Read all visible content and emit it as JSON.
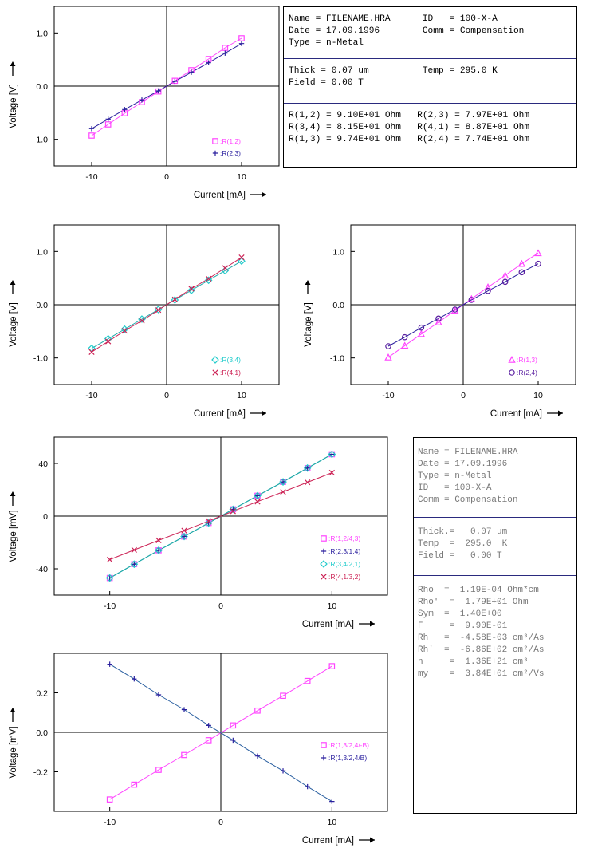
{
  "chart_data": [
    {
      "type": "scatter",
      "xlabel": "Current [mA]",
      "ylabel": "Voltage [V]",
      "xlim": [
        -15,
        15
      ],
      "ylim": [
        -1.5,
        1.5
      ],
      "xticks": [
        "-10",
        "0",
        "10"
      ],
      "yticks": [
        "1.0",
        "0.0",
        "-1.0"
      ],
      "grid": false,
      "legend": "bottom-right",
      "series": [
        {
          "name": ":R(1,2)",
          "marker": "square",
          "color": "#ff44ff",
          "line_color": "#ff44ff",
          "x": [
            -10,
            -7.8,
            -5.6,
            -3.3,
            -1.1,
            1.1,
            3.3,
            5.6,
            7.8,
            10
          ],
          "y": [
            -0.93,
            -0.72,
            -0.51,
            -0.3,
            -0.1,
            0.1,
            0.3,
            0.51,
            0.72,
            0.9
          ]
        },
        {
          "name": ":R(2,3)",
          "marker": "plus",
          "color": "#2a1f9e",
          "line_color": "#2a1f9e",
          "x": [
            -10,
            -7.8,
            -5.6,
            -3.3,
            -1.1,
            1.1,
            3.3,
            5.6,
            7.8,
            10
          ],
          "y": [
            -0.8,
            -0.62,
            -0.44,
            -0.26,
            -0.09,
            0.09,
            0.26,
            0.44,
            0.62,
            0.8
          ]
        }
      ]
    },
    {
      "type": "scatter",
      "xlabel": "Current [mA]",
      "ylabel": "Voltage [V]",
      "xlim": [
        -15,
        15
      ],
      "ylim": [
        -1.5,
        1.5
      ],
      "xticks": [
        "-10",
        "0",
        "10"
      ],
      "yticks": [
        "1.0",
        "0.0",
        "-1.0"
      ],
      "grid": false,
      "legend": "bottom-right",
      "series": [
        {
          "name": ":R(3,4)",
          "marker": "diamond",
          "color": "#22cccc",
          "line_color": "#22aaaa",
          "x": [
            -10,
            -7.8,
            -5.6,
            -3.3,
            -1.1,
            1.1,
            3.3,
            5.6,
            7.8,
            10
          ],
          "y": [
            -0.82,
            -0.64,
            -0.46,
            -0.27,
            -0.09,
            0.09,
            0.27,
            0.46,
            0.64,
            0.82
          ]
        },
        {
          "name": ":R(4,1)",
          "marker": "x",
          "color": "#cc2255",
          "line_color": "#cc2255",
          "x": [
            -10,
            -7.8,
            -5.6,
            -3.3,
            -1.1,
            1.1,
            3.3,
            5.6,
            7.8,
            10
          ],
          "y": [
            -0.89,
            -0.69,
            -0.49,
            -0.3,
            -0.1,
            0.1,
            0.3,
            0.49,
            0.69,
            0.89
          ]
        }
      ]
    },
    {
      "type": "scatter",
      "xlabel": "Current [mA]",
      "ylabel": "Voltage [V]",
      "xlim": [
        -15,
        15
      ],
      "ylim": [
        -1.5,
        1.5
      ],
      "xticks": [
        "-10",
        "0",
        "10"
      ],
      "yticks": [
        "1.0",
        "0.0",
        "-1.0"
      ],
      "grid": false,
      "legend": "bottom-right",
      "series": [
        {
          "name": ":R(1,3)",
          "marker": "triangle",
          "color": "#ff44ff",
          "line_color": "#ff44ff",
          "x": [
            -10,
            -7.8,
            -5.6,
            -3.3,
            -1.1,
            1.1,
            3.3,
            5.6,
            7.8,
            10
          ],
          "y": [
            -0.99,
            -0.77,
            -0.55,
            -0.33,
            -0.11,
            0.11,
            0.33,
            0.55,
            0.77,
            0.97
          ]
        },
        {
          "name": ":R(2,4)",
          "marker": "circle",
          "color": "#5a1fa0",
          "line_color": "#2a1f9e",
          "x": [
            -10,
            -7.8,
            -5.6,
            -3.3,
            -1.1,
            1.1,
            3.3,
            5.6,
            7.8,
            10
          ],
          "y": [
            -0.78,
            -0.61,
            -0.43,
            -0.26,
            -0.09,
            0.09,
            0.26,
            0.43,
            0.61,
            0.77
          ]
        }
      ]
    },
    {
      "type": "scatter",
      "xlabel": "Current [mA]",
      "ylabel": "Voltage [mV]",
      "xlim": [
        -15,
        15
      ],
      "ylim": [
        -60,
        60
      ],
      "xticks": [
        "-10",
        "0",
        "10"
      ],
      "yticks": [
        "40",
        "0",
        "-40"
      ],
      "grid": false,
      "legend": "bottom-right",
      "series": [
        {
          "name": ":R(1,2/4,3)",
          "marker": "square",
          "color": "#ff44ff",
          "line_color": "#22aaaa",
          "x": [
            -10,
            -7.8,
            -5.6,
            -3.3,
            -1.1,
            1.1,
            3.3,
            5.6,
            7.8,
            10
          ],
          "y": [
            -47,
            -36.5,
            -26,
            -15.5,
            -5.2,
            5.2,
            15.5,
            26,
            36.5,
            47
          ]
        },
        {
          "name": ":R(2,3/1,4)",
          "marker": "plus",
          "color": "#2a1f9e",
          "line_color": "#22aaaa",
          "x": [
            -10,
            -7.8,
            -5.6,
            -3.3,
            -1.1,
            1.1,
            3.3,
            5.6,
            7.8,
            10
          ],
          "y": [
            -47,
            -36.5,
            -26,
            -15.5,
            -5.2,
            5.2,
            15.5,
            26,
            36.5,
            47
          ]
        },
        {
          "name": ":R(3,4/2,1)",
          "marker": "diamond",
          "color": "#22cccc",
          "line_color": "#22aaaa",
          "x": [
            -10,
            -7.8,
            -5.6,
            -3.3,
            -1.1,
            1.1,
            3.3,
            5.6,
            7.8,
            10
          ],
          "y": [
            -47,
            -36.5,
            -26,
            -15.5,
            -5.2,
            5.2,
            15.5,
            26,
            36.5,
            47
          ]
        },
        {
          "name": ":R(4,1/3,2)",
          "marker": "x",
          "color": "#cc2255",
          "line_color": "#cc2255",
          "x": [
            -10,
            -7.8,
            -5.6,
            -3.3,
            -1.1,
            1.1,
            3.3,
            5.6,
            7.8,
            10
          ],
          "y": [
            -33,
            -25.7,
            -18.4,
            -11,
            -3.7,
            3.7,
            11,
            18.4,
            25.7,
            33
          ]
        }
      ]
    },
    {
      "type": "scatter",
      "xlabel": "Current [mA]",
      "ylabel": "Voltage [mV]",
      "xlim": [
        -15,
        15
      ],
      "ylim": [
        -0.4,
        0.4
      ],
      "xticks": [
        "-10",
        "0",
        "10"
      ],
      "yticks": [
        "0.2",
        "0.0",
        "-0.2"
      ],
      "grid": false,
      "legend": "bottom-right",
      "series": [
        {
          "name": ":R(1,3/2,4/-B)",
          "marker": "square",
          "color": "#ff44ff",
          "line_color": "#ff44ff",
          "x": [
            -10,
            -7.8,
            -5.6,
            -3.3,
            -1.1,
            1.1,
            3.3,
            5.6,
            7.8,
            10
          ],
          "y": [
            -0.34,
            -0.265,
            -0.19,
            -0.115,
            -0.04,
            0.035,
            0.11,
            0.185,
            0.26,
            0.335
          ]
        },
        {
          "name": ":R(1,3/2,4/B)",
          "marker": "plus",
          "color": "#2a1f9e",
          "line_color": "#2a5fa0",
          "x": [
            -10,
            -7.8,
            -5.6,
            -3.3,
            -1.1,
            1.1,
            3.3,
            5.6,
            7.8,
            10
          ],
          "y": [
            0.345,
            0.27,
            0.19,
            0.115,
            0.035,
            -0.04,
            -0.12,
            -0.195,
            -0.275,
            -0.35
          ]
        }
      ]
    }
  ],
  "info_top": {
    "sections": [
      [
        "Name = FILENAME.HRA      ID   = 100-X-A",
        "Date = 17.09.1996        Comm = Compensation",
        "Type = n-Metal"
      ],
      [
        "Thick = 0.07 um          Temp = 295.0 K",
        "Field = 0.00 T"
      ],
      [
        "R(1,2) = 9.10E+01 Ohm   R(2,3) = 7.97E+01 Ohm",
        "R(3,4) = 8.15E+01 Ohm   R(4,1) = 8.87E+01 Ohm",
        "R(1,3) = 9.74E+01 Ohm   R(2,4) = 7.74E+01 Ohm"
      ]
    ],
    "text_color": "#000000",
    "divider_color": "#2a2a7e"
  },
  "info_bottom": {
    "sections": [
      [
        "Name = FILENAME.HRA",
        "Date = 17.09.1996",
        "Type = n-Metal",
        "ID   = 100-X-A",
        "Comm = Compensation"
      ],
      [
        "Thick.=   0.07 um",
        "Temp  =  295.0  K",
        "Field =   0.00 T"
      ],
      [
        "Rho  =  1.19E-04 Ohm*cm",
        "Rho'  =  1.79E+01 Ohm",
        "Sym  =  1.40E+00",
        "F     =  9.90E-01",
        "Rh   =  -4.58E-03 cm³/As",
        "Rh'  =  -6.86E+02 cm²/As",
        "n     =  1.36E+21 cm³",
        "my    =  3.84E+01 cm²/Vs"
      ]
    ],
    "text_color": "#777777",
    "divider_color": "#2a2a7e"
  }
}
